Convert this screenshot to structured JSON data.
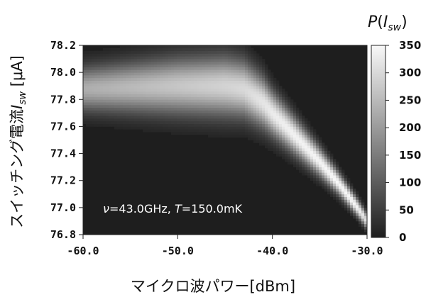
{
  "chart_data": {
    "type": "heatmap",
    "title": "",
    "xlabel": "マイクロ波パワー[dBm]",
    "ylabel_prefix": "スイッチング電流",
    "ylabel_symbol": "I",
    "ylabel_subscript": "sw",
    "ylabel_unit": " [μA]",
    "xlim": [
      -60.0,
      -30.0
    ],
    "ylim": [
      76.8,
      78.2
    ],
    "x_ticks": [
      "-60.0",
      "-50.0",
      "-40.0",
      "-30.0"
    ],
    "x_tick_values": [
      -60.0,
      -50.0,
      -40.0,
      -30.0
    ],
    "y_ticks": [
      "76.8",
      "77.0",
      "77.2",
      "77.4",
      "77.6",
      "77.8",
      "78.0",
      "78.2"
    ],
    "y_tick_values": [
      76.8,
      77.0,
      77.2,
      77.4,
      77.6,
      77.8,
      78.0,
      78.2
    ],
    "colorbar": {
      "title_symbol": "P",
      "title_arg": "I",
      "title_sub": "sw",
      "range": [
        0,
        350
      ],
      "ticks": [
        "0",
        "50",
        "100",
        "150",
        "200",
        "250",
        "300",
        "350"
      ],
      "tick_values": [
        0,
        50,
        100,
        150,
        200,
        250,
        300,
        350
      ],
      "colormap": "grayscale",
      "low_color": "#1e1e1e",
      "high_color": "#f8f8f8"
    },
    "annotation": {
      "nu_symbol": "ν",
      "nu_value": "=43.0GHz, ",
      "t_symbol": "T",
      "t_value": "=150.0mK"
    },
    "ridge": {
      "x": [
        -60.0,
        -55.0,
        -50.0,
        -45.0,
        -43.0,
        -41.0,
        -40.0,
        -38.0,
        -35.0,
        -33.0,
        -31.0,
        -30.0
      ],
      "center": [
        77.88,
        77.89,
        77.9,
        77.9,
        77.88,
        77.78,
        77.7,
        77.56,
        77.34,
        77.18,
        77.0,
        76.9
      ],
      "half_width": [
        0.14,
        0.16,
        0.18,
        0.19,
        0.18,
        0.16,
        0.14,
        0.12,
        0.09,
        0.07,
        0.055,
        0.05
      ],
      "peak": [
        230,
        250,
        270,
        290,
        300,
        320,
        330,
        340,
        345,
        350,
        345,
        300
      ]
    },
    "grid": false
  }
}
